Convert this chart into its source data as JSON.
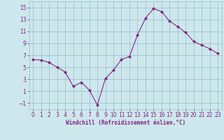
{
  "x": [
    0,
    1,
    2,
    3,
    4,
    5,
    6,
    7,
    8,
    9,
    10,
    11,
    12,
    13,
    14,
    15,
    16,
    17,
    18,
    19,
    20,
    21,
    22,
    23
  ],
  "y": [
    6.3,
    6.2,
    5.8,
    5.0,
    4.2,
    1.8,
    2.5,
    1.2,
    -1.3,
    3.1,
    4.5,
    6.3,
    6.8,
    10.4,
    13.2,
    14.8,
    14.3,
    12.7,
    11.8,
    10.8,
    9.3,
    8.7,
    8.1,
    7.3
  ],
  "line_color": "#882288",
  "marker": "D",
  "marker_size": 2.0,
  "bg_color": "#cce8ec",
  "grid_color": "#99bbcc",
  "xlabel": "Windchill (Refroidissement éolien,°C)",
  "xlabel_color": "#882288",
  "tick_color": "#882288",
  "xlim": [
    -0.5,
    23.5
  ],
  "ylim": [
    -2,
    16
  ],
  "yticks": [
    -1,
    1,
    3,
    5,
    7,
    9,
    11,
    13,
    15
  ],
  "xticks": [
    0,
    1,
    2,
    3,
    4,
    5,
    6,
    7,
    8,
    9,
    10,
    11,
    12,
    13,
    14,
    15,
    16,
    17,
    18,
    19,
    20,
    21,
    22,
    23
  ],
  "tick_fontsize": 5.5,
  "xlabel_fontsize": 5.5
}
